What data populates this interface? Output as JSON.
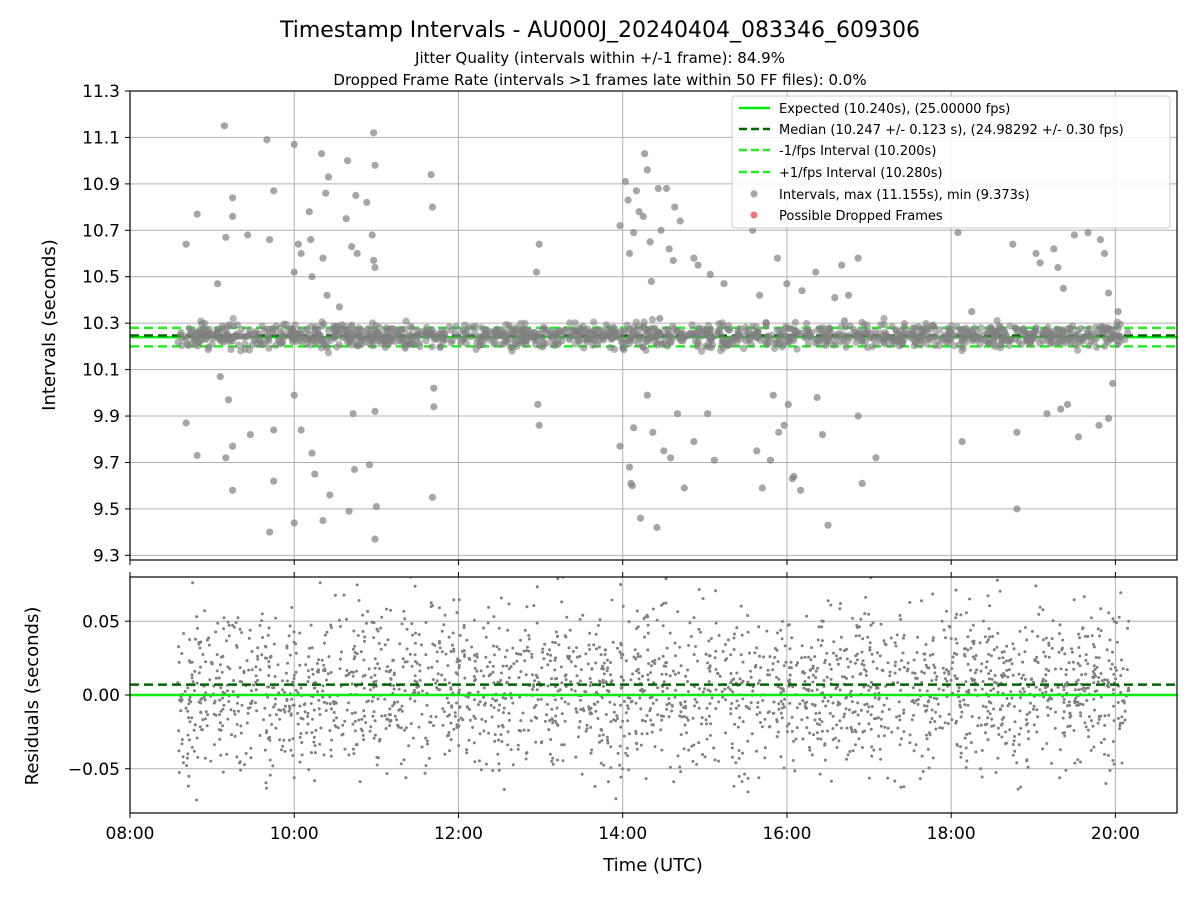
{
  "figure": {
    "title": "Timestamp Intervals - AU000J_20240404_083346_609306",
    "subtitle_1": "Jitter Quality (intervals within +/-1 frame): 84.9%",
    "subtitle_2": "Dropped Frame Rate (intervals >1 frames late within 50 FF files): 0.0%"
  },
  "colors": {
    "expected": "#00ee00",
    "median": "#006400",
    "interval_bounds": "#22ee22",
    "points": "#808080",
    "dropped": "#ee5555",
    "grid": "#b0b0b0"
  },
  "chart_data": [
    {
      "type": "scatter",
      "ylabel": "Intervals (seconds)",
      "ylim": [
        9.28,
        11.3
      ],
      "yticks": [
        "9.3",
        "9.5",
        "9.7",
        "9.9",
        "10.1",
        "10.3",
        "10.5",
        "10.7",
        "10.9",
        "11.1",
        "11.3"
      ],
      "xlim": [
        "08:00",
        "20:45"
      ],
      "grid": true,
      "legend_position": "top-right",
      "reference_lines": [
        {
          "name": "Expected (10.240s), (25.00000 fps)",
          "value": 10.24,
          "style": "solid",
          "color": "#00ee00"
        },
        {
          "name": "Median (10.247 +/- 0.123 s), (24.98292 +/- 0.30 fps)",
          "value": 10.247,
          "style": "dashed",
          "color": "#006400"
        },
        {
          "name": "-1/fps Interval (10.200s)",
          "value": 10.2,
          "style": "dashed",
          "color": "#22ee22"
        },
        {
          "name": "+1/fps Interval (10.280s)",
          "value": 10.28,
          "style": "dashed",
          "color": "#22ee22"
        }
      ],
      "series": [
        {
          "name": "Intervals, max (11.155s), min (9.373s)",
          "color": "#808080",
          "time_range": [
            "08:35",
            "20:10"
          ],
          "core_band": [
            10.15,
            10.32
          ],
          "max": 11.155,
          "min": 9.373,
          "outliers": [
            [
              "08:41",
              10.64
            ],
            [
              "08:41",
              9.87
            ],
            [
              "08:49",
              10.77
            ],
            [
              "08:49",
              9.73
            ],
            [
              "09:04",
              10.47
            ],
            [
              "09:06",
              10.07
            ],
            [
              "09:09",
              11.15
            ],
            [
              "09:10",
              10.67
            ],
            [
              "09:10",
              9.72
            ],
            [
              "09:12",
              9.97
            ],
            [
              "09:15",
              10.84
            ],
            [
              "09:15",
              10.76
            ],
            [
              "09:15",
              9.58
            ],
            [
              "09:15",
              9.77
            ],
            [
              "09:26",
              10.68
            ],
            [
              "09:28",
              9.82
            ],
            [
              "09:40",
              11.09
            ],
            [
              "09:42",
              10.66
            ],
            [
              "09:42",
              9.4
            ],
            [
              "09:45",
              10.87
            ],
            [
              "09:45",
              9.62
            ],
            [
              "09:45",
              9.84
            ],
            [
              "10:00",
              11.07
            ],
            [
              "10:00",
              10.52
            ],
            [
              "10:00",
              9.44
            ],
            [
              "10:00",
              9.99
            ],
            [
              "10:03",
              10.64
            ],
            [
              "10:05",
              10.6
            ],
            [
              "10:05",
              9.84
            ],
            [
              "10:11",
              10.78
            ],
            [
              "10:12",
              10.66
            ],
            [
              "10:13",
              10.5
            ],
            [
              "10:13",
              9.74
            ],
            [
              "10:15",
              9.65
            ],
            [
              "10:20",
              11.03
            ],
            [
              "10:21",
              10.58
            ],
            [
              "10:21",
              9.45
            ],
            [
              "10:23",
              10.86
            ],
            [
              "10:24",
              10.42
            ],
            [
              "10:25",
              10.93
            ],
            [
              "10:26",
              9.56
            ],
            [
              "10:33",
              10.37
            ],
            [
              "10:38",
              10.75
            ],
            [
              "10:39",
              11.0
            ],
            [
              "10:40",
              9.49
            ],
            [
              "10:42",
              10.63
            ],
            [
              "10:43",
              9.91
            ],
            [
              "10:44",
              9.67
            ],
            [
              "10:45",
              10.85
            ],
            [
              "10:46",
              10.6
            ],
            [
              "10:53",
              10.82
            ],
            [
              "10:55",
              9.69
            ],
            [
              "10:57",
              10.68
            ],
            [
              "10:58",
              11.12
            ],
            [
              "10:58",
              10.57
            ],
            [
              "10:59",
              10.54
            ],
            [
              "10:59",
              10.98
            ],
            [
              "11:00",
              9.51
            ],
            [
              "10:59",
              9.92
            ],
            [
              "10:59",
              9.37
            ],
            [
              "11:40",
              10.94
            ],
            [
              "11:41",
              10.8
            ],
            [
              "11:42",
              10.02
            ],
            [
              "11:42",
              9.94
            ],
            [
              "11:41",
              9.55
            ],
            [
              "12:57",
              10.52
            ],
            [
              "12:58",
              9.95
            ],
            [
              "12:59",
              10.64
            ],
            [
              "12:59",
              9.86
            ],
            [
              "13:58",
              10.72
            ],
            [
              "13:58",
              9.77
            ],
            [
              "14:02",
              10.91
            ],
            [
              "14:04",
              10.83
            ],
            [
              "14:05",
              10.6
            ],
            [
              "14:05",
              9.68
            ],
            [
              "14:06",
              9.61
            ],
            [
              "14:07",
              9.6
            ],
            [
              "14:08",
              10.69
            ],
            [
              "14:08",
              9.85
            ],
            [
              "14:10",
              10.87
            ],
            [
              "14:12",
              10.78
            ],
            [
              "14:13",
              9.46
            ],
            [
              "14:15",
              10.76
            ],
            [
              "14:16",
              11.03
            ],
            [
              "14:18",
              10.96
            ],
            [
              "14:18",
              9.99
            ],
            [
              "14:20",
              10.65
            ],
            [
              "14:21",
              10.48
            ],
            [
              "14:22",
              9.83
            ],
            [
              "14:25",
              9.42
            ],
            [
              "14:26",
              10.88
            ],
            [
              "14:27",
              10.32
            ],
            [
              "14:28",
              10.7
            ],
            [
              "14:30",
              9.75
            ],
            [
              "14:32",
              10.88
            ],
            [
              "14:34",
              10.62
            ],
            [
              "14:35",
              9.72
            ],
            [
              "14:37",
              10.57
            ],
            [
              "14:38",
              10.8
            ],
            [
              "14:40",
              9.91
            ],
            [
              "14:42",
              10.74
            ],
            [
              "14:45",
              9.59
            ],
            [
              "14:52",
              10.58
            ],
            [
              "14:52",
              9.79
            ],
            [
              "14:55",
              10.55
            ],
            [
              "15:02",
              9.91
            ],
            [
              "15:04",
              10.51
            ],
            [
              "15:07",
              9.71
            ],
            [
              "15:14",
              10.47
            ],
            [
              "15:35",
              10.7
            ],
            [
              "15:36",
              10.87
            ],
            [
              "15:38",
              9.75
            ],
            [
              "15:40",
              10.42
            ],
            [
              "15:42",
              9.59
            ],
            [
              "15:45",
              10.3
            ],
            [
              "15:48",
              9.71
            ],
            [
              "15:50",
              9.99
            ],
            [
              "15:53",
              10.58
            ],
            [
              "15:54",
              9.83
            ],
            [
              "15:57",
              10.74
            ],
            [
              "15:58",
              9.86
            ],
            [
              "16:00",
              10.47
            ],
            [
              "16:01",
              9.95
            ],
            [
              "16:04",
              9.63
            ],
            [
              "16:05",
              9.64
            ],
            [
              "16:10",
              9.58
            ],
            [
              "16:11",
              10.44
            ],
            [
              "16:19",
              10.86
            ],
            [
              "16:21",
              10.52
            ],
            [
              "16:22",
              9.98
            ],
            [
              "16:26",
              9.82
            ],
            [
              "16:30",
              9.43
            ],
            [
              "16:35",
              10.41
            ],
            [
              "16:40",
              10.55
            ],
            [
              "16:42",
              10.31
            ],
            [
              "16:45",
              10.42
            ],
            [
              "16:52",
              10.58
            ],
            [
              "16:52",
              9.9
            ],
            [
              "16:55",
              9.61
            ],
            [
              "17:05",
              9.72
            ],
            [
              "18:05",
              10.69
            ],
            [
              "18:08",
              9.79
            ],
            [
              "18:15",
              10.35
            ],
            [
              "18:45",
              10.64
            ],
            [
              "18:48",
              9.5
            ],
            [
              "18:48",
              9.83
            ],
            [
              "19:02",
              10.6
            ],
            [
              "19:05",
              10.56
            ],
            [
              "19:10",
              9.91
            ],
            [
              "19:15",
              10.62
            ],
            [
              "19:18",
              10.54
            ],
            [
              "19:20",
              9.93
            ],
            [
              "19:22",
              10.45
            ],
            [
              "19:25",
              9.95
            ],
            [
              "19:30",
              10.68
            ],
            [
              "19:33",
              9.81
            ],
            [
              "19:40",
              10.69
            ],
            [
              "19:48",
              9.86
            ],
            [
              "19:49",
              10.66
            ],
            [
              "19:52",
              10.6
            ],
            [
              "19:55",
              10.43
            ],
            [
              "19:58",
              10.04
            ],
            [
              "20:02",
              10.35
            ],
            [
              "19:55",
              9.89
            ]
          ]
        },
        {
          "name": "Possible Dropped Frames",
          "color": "#ee5555",
          "points": []
        }
      ]
    },
    {
      "type": "scatter",
      "xlabel": "Time (UTC)",
      "ylabel": "Residuals (seconds)",
      "ylim": [
        -0.08,
        0.08
      ],
      "yticks": [
        "−0.05",
        "0.00",
        "0.05"
      ],
      "xticks": [
        "08:00",
        "10:00",
        "12:00",
        "14:00",
        "16:00",
        "18:00",
        "20:00"
      ],
      "grid": true,
      "reference_lines": [
        {
          "value": 0.0,
          "style": "solid",
          "color": "#00ee00"
        },
        {
          "value": 0.007,
          "style": "dashed",
          "color": "#006400"
        }
      ],
      "series": [
        {
          "color": "#808080",
          "time_range": [
            "08:35",
            "20:10"
          ],
          "spread": [
            -0.08,
            0.08
          ],
          "center": 0.005
        }
      ]
    }
  ]
}
